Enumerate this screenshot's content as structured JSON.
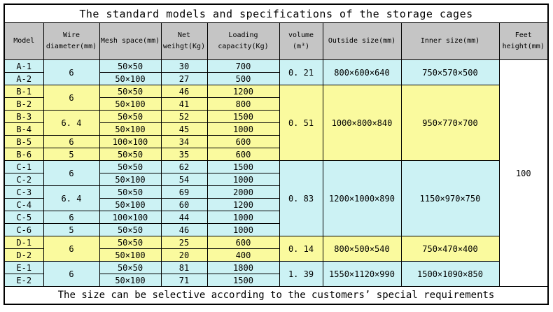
{
  "title": "The standard models and specifications of the storage cages",
  "footer": "The size can be selective according to the customers’ special requirements",
  "colors": {
    "blue": "#CCF2F4",
    "yellow": "#FAFA9E",
    "header_gray": "#C5C5C5",
    "border": "#000000",
    "white": "#FFFFFF"
  },
  "table": {
    "headers": [
      "Model",
      "Wire\ndiameter(mm)",
      "Mesh space(mm)",
      "Net\nweihgt(Kg)",
      "Loading\ncapacity(Kg)",
      "volume\n(m³)",
      "Outside size(mm)",
      "Inner size(mm)",
      "Feet\nheight(mm)"
    ],
    "feet_height": "100",
    "groups": [
      {
        "color": "blue",
        "volume": "0. 21",
        "outside": "800×600×640",
        "inner": "750×570×500",
        "wire_spans": [
          {
            "value": "6",
            "rows": 2
          }
        ],
        "rows": [
          {
            "model": "A-1",
            "mesh": "50×50",
            "net": "30",
            "load": "700"
          },
          {
            "model": "A-2",
            "mesh": "50×100",
            "net": "27",
            "load": "500"
          }
        ]
      },
      {
        "color": "yellow",
        "volume": "0. 51",
        "outside": "1000×800×840",
        "inner": "950×770×700",
        "wire_spans": [
          {
            "value": "6",
            "rows": 2
          },
          {
            "value": "6. 4",
            "rows": 2
          },
          {
            "value": "6",
            "rows": 1
          },
          {
            "value": "5",
            "rows": 1
          }
        ],
        "rows": [
          {
            "model": "B-1",
            "mesh": "50×50",
            "net": "46",
            "load": "1200"
          },
          {
            "model": "B-2",
            "mesh": "50×100",
            "net": "41",
            "load": "800"
          },
          {
            "model": "B-3",
            "mesh": "50×50",
            "net": "52",
            "load": "1500"
          },
          {
            "model": "B-4",
            "mesh": "50×100",
            "net": "45",
            "load": "1000"
          },
          {
            "model": "B-5",
            "mesh": "100×100",
            "net": "34",
            "load": "600"
          },
          {
            "model": "B-6",
            "mesh": "50×50",
            "net": "35",
            "load": "600"
          }
        ]
      },
      {
        "color": "blue",
        "volume": "0. 83",
        "outside": "1200×1000×890",
        "inner": "1150×970×750",
        "wire_spans": [
          {
            "value": "6",
            "rows": 2
          },
          {
            "value": "6. 4",
            "rows": 2
          },
          {
            "value": "6",
            "rows": 1
          },
          {
            "value": "5",
            "rows": 1
          }
        ],
        "rows": [
          {
            "model": "C-1",
            "mesh": "50×50",
            "net": "62",
            "load": "1500"
          },
          {
            "model": "C-2",
            "mesh": "50×100",
            "net": "54",
            "load": "1000"
          },
          {
            "model": "C-3",
            "mesh": "50×50",
            "net": "69",
            "load": "2000"
          },
          {
            "model": "C-4",
            "mesh": "50×100",
            "net": "60",
            "load": "1200"
          },
          {
            "model": "C-5",
            "mesh": "100×100",
            "net": "44",
            "load": "1000"
          },
          {
            "model": "C-6",
            "mesh": "50×50",
            "net": "46",
            "load": "1000"
          }
        ]
      },
      {
        "color": "yellow",
        "volume": "0. 14",
        "outside": "800×500×540",
        "inner": "750×470×400",
        "wire_spans": [
          {
            "value": "6",
            "rows": 2
          }
        ],
        "rows": [
          {
            "model": "D-1",
            "mesh": "50×50",
            "net": "25",
            "load": "600"
          },
          {
            "model": "D-2",
            "mesh": "50×100",
            "net": "20",
            "load": "400"
          }
        ]
      },
      {
        "color": "blue",
        "volume": "1. 39",
        "outside": "1550×1120×990",
        "inner": "1500×1090×850",
        "wire_spans": [
          {
            "value": "6",
            "rows": 2
          }
        ],
        "rows": [
          {
            "model": "E-1",
            "mesh": "50×50",
            "net": "81",
            "load": "1800"
          },
          {
            "model": "E-2",
            "mesh": "50×100",
            "net": "71",
            "load": "1500"
          }
        ]
      }
    ]
  },
  "chart_data": {
    "type": "table",
    "title": "The standard models and specifications of the storage cages",
    "columns": [
      "Model",
      "Wire diameter(mm)",
      "Mesh space(mm)",
      "Net weihgt(Kg)",
      "Loading capacity(Kg)",
      "volume (m³)",
      "Outside size(mm)",
      "Inner size(mm)",
      "Feet height(mm)"
    ],
    "rows": [
      [
        "A-1",
        "6",
        "50×50",
        "30",
        "700",
        "0.21",
        "800×600×640",
        "750×570×500",
        "100"
      ],
      [
        "A-2",
        "6",
        "50×100",
        "27",
        "500",
        "0.21",
        "800×600×640",
        "750×570×500",
        "100"
      ],
      [
        "B-1",
        "6",
        "50×50",
        "46",
        "1200",
        "0.51",
        "1000×800×840",
        "950×770×700",
        "100"
      ],
      [
        "B-2",
        "6",
        "50×100",
        "41",
        "800",
        "0.51",
        "1000×800×840",
        "950×770×700",
        "100"
      ],
      [
        "B-3",
        "6.4",
        "50×50",
        "52",
        "1500",
        "0.51",
        "1000×800×840",
        "950×770×700",
        "100"
      ],
      [
        "B-4",
        "6.4",
        "50×100",
        "45",
        "1000",
        "0.51",
        "1000×800×840",
        "950×770×700",
        "100"
      ],
      [
        "B-5",
        "6",
        "100×100",
        "34",
        "600",
        "0.51",
        "1000×800×840",
        "950×770×700",
        "100"
      ],
      [
        "B-6",
        "5",
        "50×50",
        "35",
        "600",
        "0.51",
        "1000×800×840",
        "950×770×700",
        "100"
      ],
      [
        "C-1",
        "6",
        "50×50",
        "62",
        "1500",
        "0.83",
        "1200×1000×890",
        "1150×970×750",
        "100"
      ],
      [
        "C-2",
        "6",
        "50×100",
        "54",
        "1000",
        "0.83",
        "1200×1000×890",
        "1150×970×750",
        "100"
      ],
      [
        "C-3",
        "6.4",
        "50×50",
        "69",
        "2000",
        "0.83",
        "1200×1000×890",
        "1150×970×750",
        "100"
      ],
      [
        "C-4",
        "6.4",
        "50×100",
        "60",
        "1200",
        "0.83",
        "1200×1000×890",
        "1150×970×750",
        "100"
      ],
      [
        "C-5",
        "6",
        "100×100",
        "44",
        "1000",
        "0.83",
        "1200×1000×890",
        "1150×970×750",
        "100"
      ],
      [
        "C-6",
        "5",
        "50×50",
        "46",
        "1000",
        "0.83",
        "1200×1000×890",
        "1150×970×750",
        "100"
      ],
      [
        "D-1",
        "6",
        "50×50",
        "25",
        "600",
        "0.14",
        "800×500×540",
        "750×470×400",
        "100"
      ],
      [
        "D-2",
        "6",
        "50×100",
        "20",
        "400",
        "0.14",
        "800×500×540",
        "750×470×400",
        "100"
      ],
      [
        "E-1",
        "6",
        "50×50",
        "81",
        "1800",
        "1.39",
        "1550×1120×990",
        "1500×1090×850",
        "100"
      ],
      [
        "E-2",
        "6",
        "50×100",
        "71",
        "1500",
        "1.39",
        "1550×1120×990",
        "1500×1090×850",
        "100"
      ]
    ],
    "footnote": "The size can be selective according to the customers’ special requirements"
  }
}
